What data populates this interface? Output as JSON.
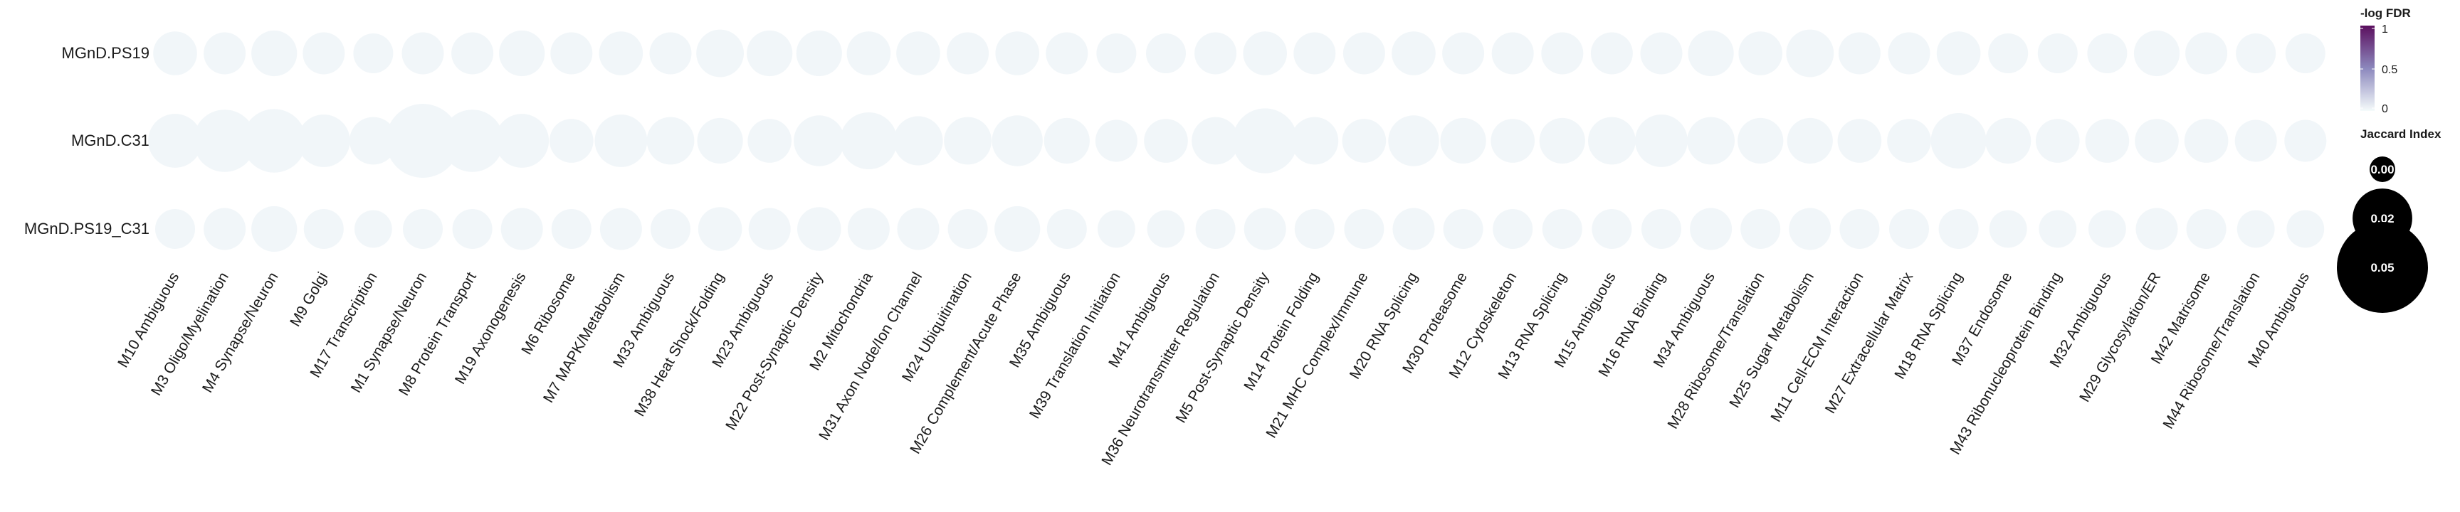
{
  "chart_data": {
    "type": "scatter",
    "subtype": "dot-matrix",
    "rows": [
      "MGnD.PS19",
      "MGnD.C31",
      "MGnD.PS19_C31"
    ],
    "columns": [
      "M10 Ambiguous",
      "M3 Oligo/Myelination",
      "M4 Synapse/Neuron",
      "M9 Golgi",
      "M17 Transcription",
      "M1 Synapse/Neuron",
      "M8 Protein Transport",
      "M19 Axonogenesis",
      "M6 Ribosome",
      "M7 MAPK/Metabolism",
      "M33 Ambiguous",
      "M38 Heat Shock/Folding",
      "M23 Ambiguous",
      "M22 Post-Synaptic Density",
      "M2 Mitochondria",
      "M31 Axon Node/Ion Channel",
      "M24 Ubiquitination",
      "M26 Complement/Acute Phase",
      "M35 Ambiguous",
      "M39 Translation Initiation",
      "M41 Ambiguous",
      "M36 Neurotransmitter Regulation",
      "M5 Post-Synaptic Density",
      "M14 Protein Folding",
      "M21 MHC Complex/Immune",
      "M20 RNA Splicing",
      "M30 Proteasome",
      "M12 Cytoskeleton",
      "M13 RNA Splicing",
      "M15 Ambiguous",
      "M16 RNA Binding",
      "M34 Ambiguous",
      "M28 Ribosome/Translation",
      "M25 Sugar Metabolism",
      "M11 Cell-ECM Interaction",
      "M27 Extracellular Matrix",
      "M18 RNA Splicing",
      "M37 Endosome",
      "M43 Ribonucleoprotein Binding",
      "M32 Ambiguous",
      "M29 Glycosylation/ER",
      "M42 Matrisome",
      "M44 Ribosome/Translation",
      "M40 Ambiguous"
    ],
    "jaccard": [
      [
        0.01,
        0.009,
        0.011,
        0.009,
        0.008,
        0.009,
        0.009,
        0.011,
        0.009,
        0.01,
        0.009,
        0.012,
        0.011,
        0.011,
        0.01,
        0.01,
        0.009,
        0.01,
        0.009,
        0.008,
        0.008,
        0.009,
        0.01,
        0.009,
        0.009,
        0.01,
        0.009,
        0.009,
        0.009,
        0.009,
        0.009,
        0.011,
        0.01,
        0.012,
        0.009,
        0.009,
        0.01,
        0.008,
        0.008,
        0.008,
        0.011,
        0.009,
        0.008,
        0.008
      ],
      [
        0.016,
        0.022,
        0.023,
        0.015,
        0.012,
        0.032,
        0.022,
        0.016,
        0.01,
        0.015,
        0.012,
        0.011,
        0.01,
        0.014,
        0.018,
        0.013,
        0.012,
        0.014,
        0.011,
        0.009,
        0.01,
        0.012,
        0.024,
        0.012,
        0.01,
        0.014,
        0.011,
        0.01,
        0.011,
        0.012,
        0.015,
        0.012,
        0.011,
        0.011,
        0.01,
        0.01,
        0.017,
        0.011,
        0.01,
        0.01,
        0.01,
        0.01,
        0.009,
        0.009
      ],
      [
        0.008,
        0.009,
        0.011,
        0.008,
        0.007,
        0.008,
        0.008,
        0.009,
        0.008,
        0.009,
        0.008,
        0.01,
        0.009,
        0.01,
        0.009,
        0.009,
        0.008,
        0.011,
        0.008,
        0.007,
        0.007,
        0.008,
        0.009,
        0.008,
        0.008,
        0.009,
        0.008,
        0.008,
        0.008,
        0.008,
        0.008,
        0.009,
        0.008,
        0.009,
        0.008,
        0.008,
        0.008,
        0.007,
        0.007,
        0.007,
        0.009,
        0.008,
        0.007,
        0.007
      ]
    ],
    "neg_log_fdr": [
      [
        0.02,
        0.02,
        0.02,
        0.02,
        0.02,
        0.02,
        0.02,
        0.02,
        0.02,
        0.02,
        0.02,
        0.02,
        0.02,
        0.02,
        0.02,
        0.02,
        0.02,
        0.02,
        0.02,
        0.02,
        0.02,
        0.02,
        0.02,
        0.02,
        0.02,
        0.02,
        0.02,
        0.02,
        0.02,
        0.02,
        0.02,
        0.02,
        0.02,
        0.02,
        0.02,
        0.02,
        0.02,
        0.02,
        0.02,
        0.02,
        0.02,
        0.02,
        0.02,
        0.02
      ],
      [
        0.02,
        0.02,
        0.02,
        0.02,
        0.02,
        0.02,
        0.02,
        0.02,
        0.02,
        0.02,
        0.02,
        0.02,
        0.02,
        0.02,
        0.02,
        0.02,
        0.02,
        0.02,
        0.02,
        0.02,
        0.02,
        0.02,
        0.02,
        0.02,
        0.02,
        0.02,
        0.02,
        0.02,
        0.02,
        0.02,
        0.02,
        0.02,
        0.02,
        0.02,
        0.02,
        0.02,
        0.02,
        0.02,
        0.02,
        0.02,
        0.02,
        0.02,
        0.02,
        0.02
      ],
      [
        0.02,
        0.02,
        0.02,
        0.02,
        0.02,
        0.02,
        0.02,
        0.02,
        0.02,
        0.02,
        0.02,
        0.02,
        0.02,
        0.02,
        0.02,
        0.02,
        0.02,
        0.02,
        0.02,
        0.02,
        0.02,
        0.02,
        0.02,
        0.02,
        0.02,
        0.02,
        0.02,
        0.02,
        0.02,
        0.02,
        0.02,
        0.02,
        0.02,
        0.02,
        0.02,
        0.02,
        0.02,
        0.02,
        0.02,
        0.02,
        0.02,
        0.02,
        0.02,
        0.02
      ]
    ],
    "color_legend": {
      "title": "-log FDR",
      "ticks": [
        "1",
        "0.5",
        "0"
      ],
      "range": [
        0,
        1
      ],
      "colors": [
        "#f5fbfb",
        "#8c88bd",
        "#5b0f5e"
      ]
    },
    "size_legend": {
      "title": "Jaccard Index",
      "values": [
        0.0,
        0.02,
        0.05
      ],
      "labels": [
        "0.00",
        "0.02",
        "0.05"
      ],
      "color": "#000000",
      "text_color": "#ffffff"
    },
    "grid": false,
    "legend_position": "right"
  }
}
